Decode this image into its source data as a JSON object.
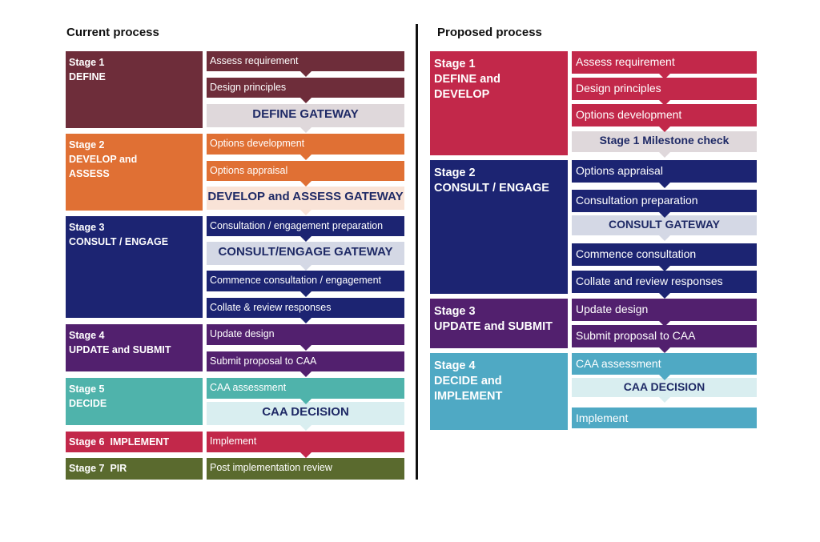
{
  "current": {
    "heading": "Current process",
    "stages": [
      {
        "title": "Stage 1",
        "name": "DEFINE",
        "color": "#6e2d3a",
        "steps": [
          {
            "label": "Assess requirement",
            "gateway": false
          },
          {
            "label": "Design principles",
            "gateway": false
          },
          {
            "label": "DEFINE GATEWAY",
            "gateway": true,
            "bg": "#dfd8db",
            "fg": "#1f2a66"
          }
        ]
      },
      {
        "title": "Stage 2",
        "name": "DEVELOP and\nASSESS",
        "color": "#e07034",
        "steps": [
          {
            "label": "Options development",
            "gateway": false
          },
          {
            "label": "Options appraisal",
            "gateway": false
          },
          {
            "label": "DEVELOP and ASSESS GATEWAY",
            "gateway": true,
            "bg": "#f9e3d7",
            "fg": "#1f2a66"
          }
        ]
      },
      {
        "title": "Stage 3",
        "name": "CONSULT / ENGAGE",
        "color": "#1c2472",
        "steps": [
          {
            "label": "Consultation / engagement preparation",
            "gateway": false
          },
          {
            "label": "CONSULT/ENGAGE GATEWAY",
            "gateway": true,
            "bg": "#d4d8e5",
            "fg": "#1f2a66"
          },
          {
            "label": "Commence consultation / engagement",
            "gateway": false
          },
          {
            "label": "Collate & review responses",
            "gateway": false
          }
        ]
      },
      {
        "title": "Stage 4",
        "name": "UPDATE and SUBMIT",
        "color": "#52206e",
        "steps": [
          {
            "label": "Update design",
            "gateway": false
          },
          {
            "label": "Submit proposal to CAA",
            "gateway": false
          }
        ]
      },
      {
        "title": "Stage 5",
        "name": "DECIDE",
        "color": "#4fb3ab",
        "steps": [
          {
            "label": "CAA assessment",
            "gateway": false
          },
          {
            "label": "CAA DECISION",
            "gateway": true,
            "bg": "#d9eef0",
            "fg": "#1f2a66"
          }
        ]
      },
      {
        "title": "Stage 6",
        "name": "IMPLEMENT",
        "color": "#c2284a",
        "steps": [
          {
            "label": "Implement",
            "gateway": false
          }
        ]
      },
      {
        "title": "Stage 7",
        "name": "PIR",
        "color": "#5a6a2e",
        "steps": [
          {
            "label": "Post implementation review",
            "gateway": false
          }
        ]
      }
    ]
  },
  "proposed": {
    "heading": "Proposed process",
    "stages": [
      {
        "title": "Stage 1",
        "name": "DEFINE and\nDEVELOP",
        "color": "#c2284a",
        "steps": [
          {
            "label": "Assess requirement",
            "gateway": false
          },
          {
            "label": "Design principles",
            "gateway": false
          },
          {
            "label": "Options development",
            "gateway": false
          },
          {
            "label": "Stage 1 Milestone check",
            "gateway": true,
            "bg": "#dfd8db",
            "fg": "#1f2a66"
          }
        ]
      },
      {
        "title": "Stage 2",
        "name": "CONSULT / ENGAGE",
        "color": "#1c2472",
        "steps": [
          {
            "label": "Options appraisal",
            "gateway": false
          },
          {
            "label": "Consultation preparation",
            "gateway": false
          },
          {
            "label": "CONSULT GATEWAY",
            "gateway": true,
            "bg": "#d4d8e5",
            "fg": "#1f2a66"
          },
          {
            "label": "Commence consultation",
            "gateway": false
          },
          {
            "label": "Collate and review responses",
            "gateway": false
          }
        ]
      },
      {
        "title": "Stage 3",
        "name": "UPDATE and SUBMIT",
        "color": "#52206e",
        "steps": [
          {
            "label": "Update design",
            "gateway": false
          },
          {
            "label": "Submit proposal to CAA",
            "gateway": false
          }
        ]
      },
      {
        "title": "Stage 4",
        "name": "DECIDE and\nIMPLEMENT",
        "color": "#4fa9c4",
        "steps": [
          {
            "label": "CAA assessment",
            "gateway": false
          },
          {
            "label": "CAA DECISION",
            "gateway": true,
            "bg": "#d9eef0",
            "fg": "#1f2a66"
          },
          {
            "label": "Implement",
            "gateway": false
          }
        ]
      }
    ]
  }
}
